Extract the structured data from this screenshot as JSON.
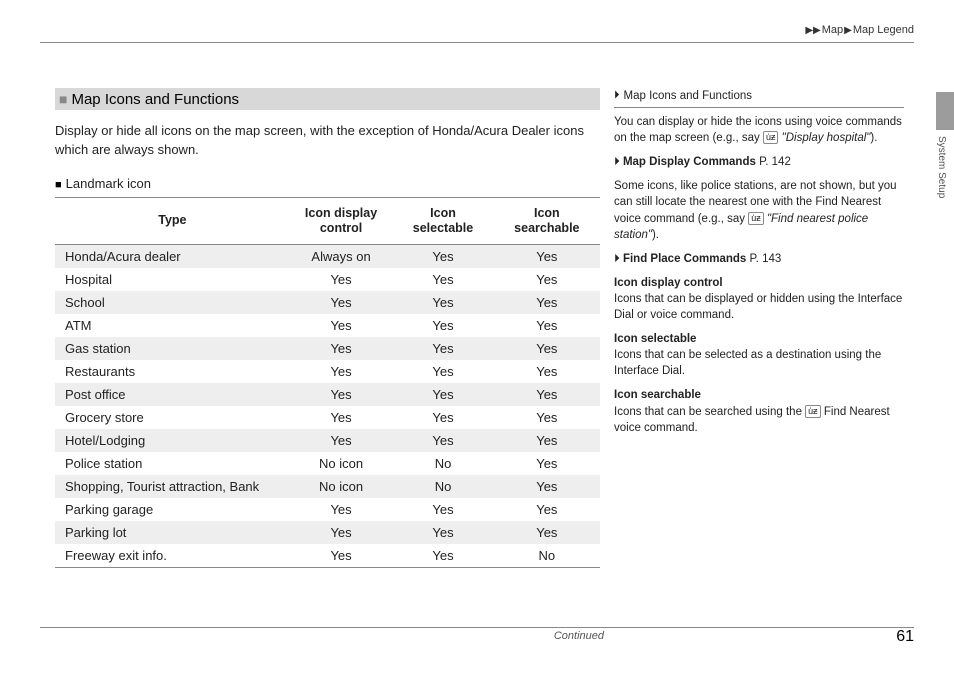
{
  "breadcrumb": {
    "a": "Map",
    "b": "Map Legend"
  },
  "sideTab": "System Setup",
  "continued": "Continued",
  "pageNum": "61",
  "section": {
    "title": "Map Icons and Functions",
    "intro": "Display or hide all icons on the map screen, with the exception of Honda/Acura Dealer icons which are always shown.",
    "subhead": "Landmark icon"
  },
  "table": {
    "columns": [
      "Type",
      "Icon display control",
      "Icon selectable",
      "Icon searchable"
    ],
    "colWidths": [
      "250px",
      "100px",
      "95px",
      "100px"
    ],
    "rows": [
      [
        "Honda/Acura dealer",
        "Always on",
        "Yes",
        "Yes"
      ],
      [
        "Hospital",
        "Yes",
        "Yes",
        "Yes"
      ],
      [
        "School",
        "Yes",
        "Yes",
        "Yes"
      ],
      [
        "ATM",
        "Yes",
        "Yes",
        "Yes"
      ],
      [
        "Gas station",
        "Yes",
        "Yes",
        "Yes"
      ],
      [
        "Restaurants",
        "Yes",
        "Yes",
        "Yes"
      ],
      [
        "Post office",
        "Yes",
        "Yes",
        "Yes"
      ],
      [
        "Grocery store",
        "Yes",
        "Yes",
        "Yes"
      ],
      [
        "Hotel/Lodging",
        "Yes",
        "Yes",
        "Yes"
      ],
      [
        "Police station",
        "No icon",
        "No",
        "Yes"
      ],
      [
        "Shopping, Tourist attraction, Bank",
        "No icon",
        "No",
        "Yes"
      ],
      [
        "Parking garage",
        "Yes",
        "Yes",
        "Yes"
      ],
      [
        "Parking lot",
        "Yes",
        "Yes",
        "Yes"
      ],
      [
        "Freeway exit info.",
        "Yes",
        "Yes",
        "No"
      ]
    ]
  },
  "aside": {
    "heading": "Map Icons and Functions",
    "p1a": "You can display or hide the icons using voice commands on the map screen (e.g., say ",
    "p1b": "\"Display hospital\"",
    "p1c": ").",
    "link1": "Map Display Commands",
    "link1p": " P. 142",
    "p2a": "Some icons, like police stations, are not shown, but you can still locate the nearest one with the Find Nearest voice command (e.g., say ",
    "p2b": "\"Find nearest police station\"",
    "p2c": ").",
    "link2": "Find Place Commands",
    "link2p": " P. 143",
    "d1h": "Icon display control",
    "d1": "Icons that can be displayed or hidden using the Interface Dial or voice command.",
    "d2h": "Icon selectable",
    "d2": "Icons that can be selected as a destination using the Interface Dial.",
    "d3h": "Icon searchable",
    "d3a": "Icons that can be searched using the ",
    "d3b": " Find Nearest voice command."
  }
}
